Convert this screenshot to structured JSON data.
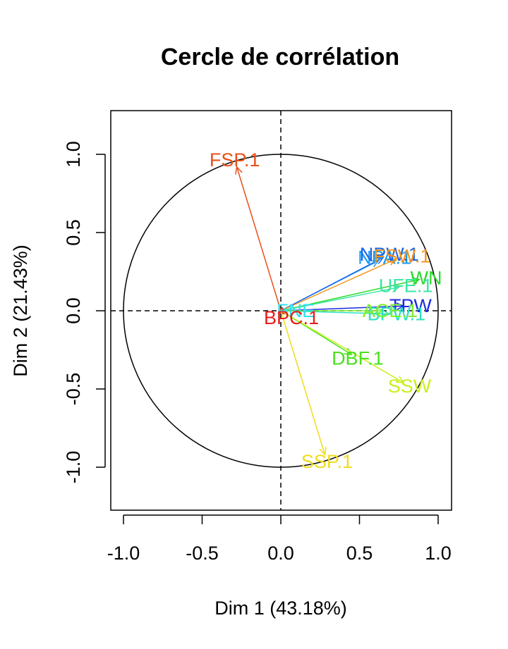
{
  "chart_data": {
    "type": "scatter",
    "title": "Cercle de corrélation",
    "xlabel": "Dim 1 (43.18%)",
    "ylabel": "Dim 2 (21.43%)",
    "xlim": [
      -1.1,
      1.1
    ],
    "ylim": [
      -1.27,
      1.27
    ],
    "xticks": [
      "-1.0",
      "-0.5",
      "0.0",
      "0.5",
      "1.0"
    ],
    "yticks": [
      "-1.0",
      "-0.5",
      "0.0",
      "0.5",
      "1.0"
    ],
    "unit_circle": true,
    "reference_lines": "dashed x=0 and y=0",
    "variables": [
      {
        "name": "FSP.1",
        "x": -0.28,
        "y": 0.92,
        "color": "#e8501b"
      },
      {
        "name": "NPA.1",
        "x": 0.62,
        "y": 0.32,
        "color": "#1a9cf5"
      },
      {
        "name": "NPW.1",
        "x": 0.65,
        "y": 0.34,
        "color": "#1a66e8"
      },
      {
        "name": "FSW.1",
        "x": 0.73,
        "y": 0.33,
        "color": "#f5951b"
      },
      {
        "name": "WN",
        "x": 0.88,
        "y": 0.2,
        "color": "#2bd92b"
      },
      {
        "name": "UFE.1",
        "x": 0.75,
        "y": 0.15,
        "color": "#3ae6a0"
      },
      {
        "name": "TPW",
        "x": 0.78,
        "y": 0.03,
        "color": "#1a2ae0"
      },
      {
        "name": "FNE",
        "x": 0.05,
        "y": 0.0,
        "color": "#33e0f0"
      },
      {
        "name": "BPC.1",
        "x": 0.03,
        "y": -0.02,
        "color": "#e81b1b"
      },
      {
        "name": "BPW.1",
        "x": 0.69,
        "y": -0.02,
        "color": "#2be0c4"
      },
      {
        "name": "ACE.1",
        "x": 0.65,
        "y": 0.0,
        "color": "#7cf02b"
      },
      {
        "name": "DBF.1",
        "x": 0.45,
        "y": -0.28,
        "color": "#4ae01b"
      },
      {
        "name": "SSW",
        "x": 0.78,
        "y": -0.46,
        "color": "#c8f01b"
      },
      {
        "name": "SSP.1",
        "x": 0.28,
        "y": -0.92,
        "color": "#f0dc1b"
      }
    ]
  }
}
